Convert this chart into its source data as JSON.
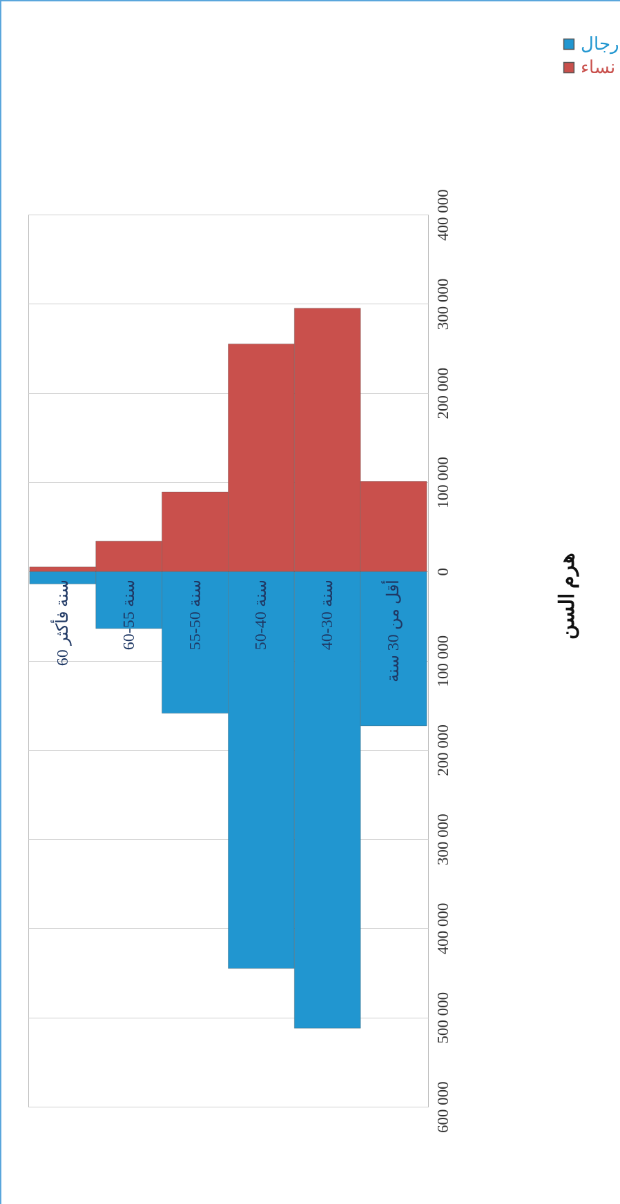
{
  "chart_data": {
    "type": "bar",
    "title": "هرم السن",
    "stacked": true,
    "categories": [
      "60 سنة فأكثر",
      "60-55 سنة",
      "55-50 سنة",
      "50-40 سنة",
      "40-30 سنة",
      "أقل من 30 سنة"
    ],
    "series": [
      {
        "name": "رجال",
        "color": "#2196d0",
        "values": [
          -14000,
          -64000,
          -159000,
          -445000,
          -512000,
          -173000
        ]
      },
      {
        "name": "نساء",
        "color": "#c9504c",
        "values": [
          5000,
          34000,
          89000,
          255000,
          295000,
          101000
        ]
      }
    ],
    "ylim": [
      -600000,
      400000
    ],
    "yticks": [
      {
        "value": -600000,
        "label": "600 000"
      },
      {
        "value": -500000,
        "label": "500 000"
      },
      {
        "value": -400000,
        "label": "400 000"
      },
      {
        "value": -300000,
        "label": "300 000"
      },
      {
        "value": -200000,
        "label": "200 000"
      },
      {
        "value": -100000,
        "label": "100 000"
      },
      0,
      {
        "value": 100000,
        "label": "100 000"
      },
      {
        "value": 200000,
        "label": "200 000"
      },
      {
        "value": 300000,
        "label": "300 000"
      },
      {
        "value": 400000,
        "label": "400 000"
      }
    ],
    "grid": "y",
    "legend": "top right"
  }
}
